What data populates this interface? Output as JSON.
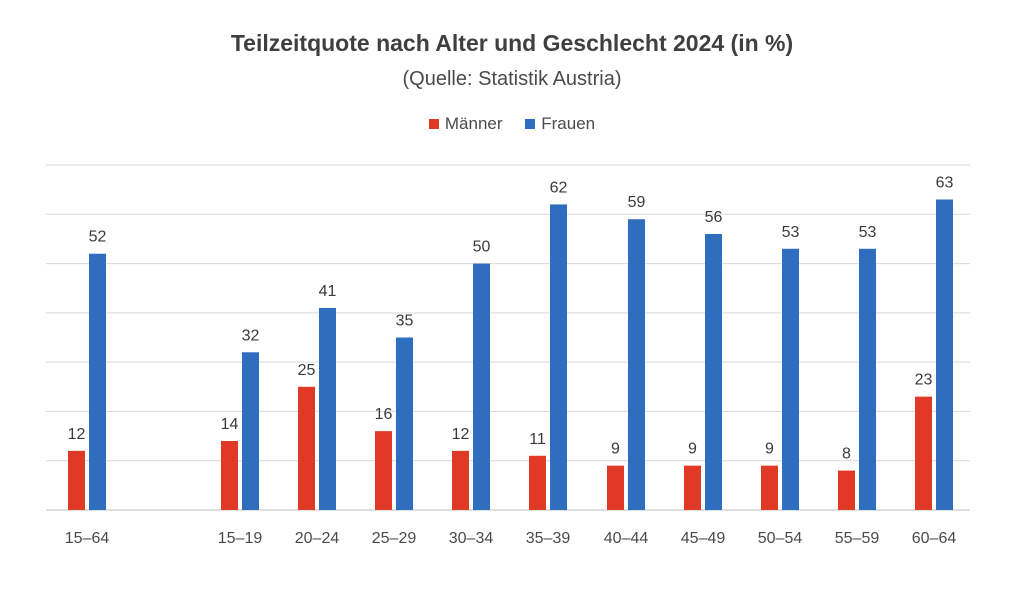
{
  "chart_data": {
    "type": "bar",
    "title": "Teilzeitquote nach Alter und Geschlecht 2024 (in %)",
    "subtitle": "(Quelle: Statistik Austria)",
    "categories": [
      "15–64",
      "15–19",
      "20–24",
      "25–29",
      "30–34",
      "35–39",
      "40–44",
      "45–49",
      "50–54",
      "55–59",
      "60–64"
    ],
    "series": [
      {
        "name": "Männer",
        "color": "#e03a26",
        "values": [
          12,
          14,
          25,
          16,
          12,
          11,
          9,
          9,
          9,
          8,
          23
        ]
      },
      {
        "name": "Frauen",
        "color": "#2f6dbf",
        "values": [
          52,
          32,
          41,
          35,
          50,
          62,
          59,
          56,
          53,
          53,
          63
        ]
      }
    ],
    "ylim": [
      0,
      70
    ],
    "grid": true,
    "legend_position": "top-center",
    "data_labels": true
  }
}
